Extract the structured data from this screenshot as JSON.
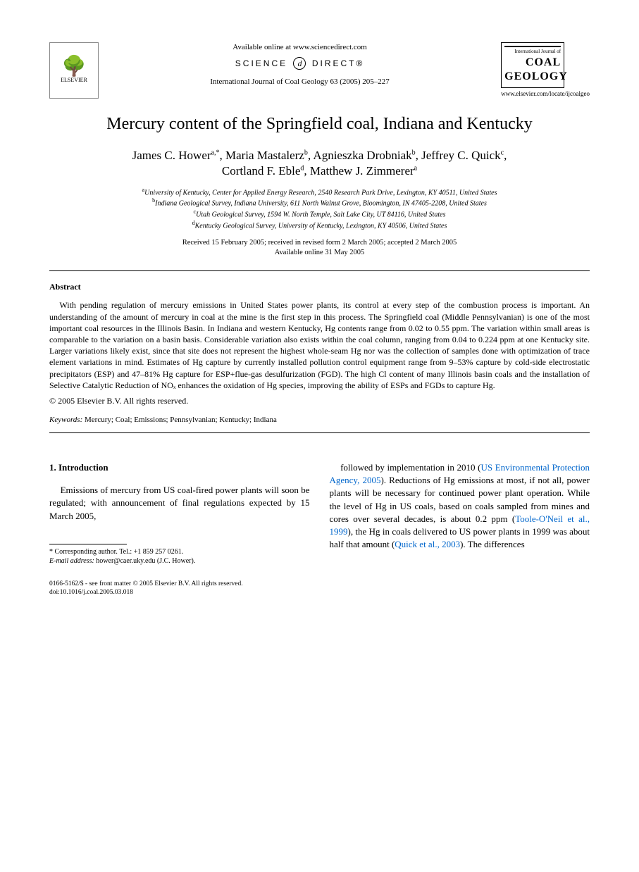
{
  "header": {
    "elsevier_label": "ELSEVIER",
    "available_online": "Available online at www.sciencedirect.com",
    "sd_left": "SCIENCE",
    "sd_right": "DIRECT®",
    "journal_ref": "International Journal of Coal Geology 63 (2005) 205–227",
    "journal_cover_small": "International Journal of",
    "journal_cover_line1": "COAL",
    "journal_cover_line2": "GEOLOGY",
    "journal_url": "www.elsevier.com/locate/ijcoalgeo"
  },
  "title": "Mercury content of the Springfield coal, Indiana and Kentucky",
  "authors_html_parts": {
    "a1": "James C. Hower",
    "a1_sup": "a,*",
    "a2": "Maria Mastalerz",
    "a2_sup": "b",
    "a3": "Agnieszka Drobniak",
    "a3_sup": "b",
    "a4": "Jeffrey C. Quick",
    "a4_sup": "c",
    "a5": "Cortland F. Eble",
    "a5_sup": "d",
    "a6": "Matthew J. Zimmerer",
    "a6_sup": "a"
  },
  "affiliations": {
    "a": "University of Kentucky, Center for Applied Energy Research, 2540 Research Park Drive, Lexington, KY 40511, United States",
    "b": "Indiana Geological Survey, Indiana University, 611 North Walnut Grove, Bloomington, IN 47405-2208, United States",
    "c": "Utah Geological Survey, 1594 W. North Temple, Salt Lake City, UT 84116, United States",
    "d": "Kentucky Geological Survey, University of Kentucky, Lexington, KY 40506, United States"
  },
  "dates": {
    "line1": "Received 15 February 2005; received in revised form 2 March 2005; accepted 2 March 2005",
    "line2": "Available online 31 May 2005"
  },
  "abstract": {
    "heading": "Abstract",
    "body": "With pending regulation of mercury emissions in United States power plants, its control at every step of the combustion process is important. An understanding of the amount of mercury in coal at the mine is the first step in this process. The Springfield coal (Middle Pennsylvanian) is one of the most important coal resources in the Illinois Basin. In Indiana and western Kentucky, Hg contents range from 0.02 to 0.55 ppm. The variation within small areas is comparable to the variation on a basin basis. Considerable variation also exists within the coal column, ranging from 0.04 to 0.224 ppm at one Kentucky site. Larger variations likely exist, since that site does not represent the highest whole-seam Hg nor was the collection of samples done with optimization of trace element variations in mind. Estimates of Hg capture by currently installed pollution control equipment range from 9–53% capture by cold-side electrostatic precipitators (ESP) and 47–81% Hg capture for ESP+flue-gas desulfurization (FGD). The high Cl content of many Illinois basin coals and the installation of Selective Catalytic Reduction of NOₓ enhances the oxidation of Hg species, improving the ability of ESPs and FGDs to capture Hg.",
    "copyright": "© 2005 Elsevier B.V. All rights reserved."
  },
  "keywords": {
    "label": "Keywords:",
    "text": " Mercury; Coal; Emissions; Pennsylvanian; Kentucky; Indiana"
  },
  "section1": {
    "heading": "1. Introduction",
    "col1_text": "Emissions of mercury from US coal-fired power plants will soon be regulated; with announcement of final regulations expected by 15 March 2005,",
    "col2_text_1": "followed by implementation in 2010 (",
    "col2_link1": "US Environmental Protection Agency, 2005",
    "col2_text_2": "). Reductions of Hg emissions at most, if not all, power plants will be necessary for continued power plant operation. While the level of Hg in US coals, based on coals sampled from mines and cores over several decades, is about 0.2 ppm (",
    "col2_link2": "Toole-O'Neil et al., 1999",
    "col2_text_3": "), the Hg in coals delivered to US power plants in 1999 was about half that amount (",
    "col2_link3": "Quick et al., 2003",
    "col2_text_4": "). The differences"
  },
  "footnotes": {
    "corr": "* Corresponding author. Tel.: +1 859 257 0261.",
    "email_label": "E-mail address:",
    "email": " hower@caer.uky.edu (J.C. Hower)."
  },
  "bottom": {
    "line1": "0166-5162/$ - see front matter © 2005 Elsevier B.V. All rights reserved.",
    "line2": "doi:10.1016/j.coal.2005.03.018"
  },
  "colors": {
    "text": "#000000",
    "link": "#0066cc",
    "background": "#ffffff",
    "rule": "#000000"
  },
  "typography": {
    "body_font": "Times New Roman",
    "body_size_pt": 10,
    "title_size_pt": 18,
    "author_size_pt": 13,
    "abstract_size_pt": 9,
    "footnote_size_pt": 7.5
  }
}
